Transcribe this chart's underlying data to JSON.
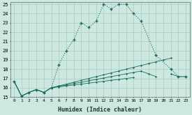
{
  "xlabel": "Humidex (Indice chaleur)",
  "bg_color": "#cce8e0",
  "grid_color": "#aaccbf",
  "line_color": "#1a6b5a",
  "xlim": [
    -0.5,
    23.5
  ],
  "ylim": [
    15,
    25.2
  ],
  "yticks": [
    15,
    16,
    17,
    18,
    19,
    20,
    21,
    22,
    23,
    24,
    25
  ],
  "xticks": [
    0,
    1,
    2,
    3,
    4,
    5,
    6,
    7,
    8,
    9,
    10,
    11,
    12,
    13,
    14,
    15,
    16,
    17,
    18,
    19,
    20,
    21,
    22,
    23
  ],
  "series": [
    {
      "x": [
        0,
        1,
        2,
        3,
        4,
        5,
        6,
        7,
        8,
        9,
        10,
        11,
        12,
        13,
        14,
        15,
        16,
        17,
        19,
        21,
        22,
        23
      ],
      "y": [
        16.7,
        15.1,
        15.5,
        15.8,
        15.5,
        16.0,
        18.5,
        20.0,
        21.2,
        23.0,
        22.5,
        23.2,
        25.0,
        24.5,
        25.0,
        25.0,
        24.0,
        23.2,
        19.5,
        18.0,
        17.2,
        17.2
      ]
    },
    {
      "x": [
        0,
        1,
        2,
        3,
        4,
        5,
        6,
        7,
        8,
        9,
        10,
        11,
        12,
        13,
        14,
        15,
        16,
        17,
        18,
        19,
        20,
        21,
        22,
        23
      ],
      "y": [
        16.7,
        15.1,
        15.5,
        15.8,
        15.5,
        16.0,
        16.2,
        16.4,
        16.6,
        16.8,
        17.0,
        17.2,
        17.4,
        17.6,
        17.8,
        18.0,
        18.2,
        18.4,
        18.6,
        18.8,
        19.0,
        19.2,
        null,
        null
      ]
    },
    {
      "x": [
        0,
        1,
        2,
        3,
        4,
        5,
        6,
        7,
        8,
        9,
        10,
        11,
        12,
        13,
        14,
        15,
        16,
        17,
        18,
        19,
        20,
        21,
        22,
        23
      ],
      "y": [
        16.7,
        15.1,
        15.5,
        15.8,
        15.5,
        16.0,
        16.15,
        16.3,
        16.45,
        16.6,
        16.75,
        16.9,
        17.05,
        17.2,
        17.35,
        17.5,
        17.65,
        17.8,
        17.5,
        17.2,
        null,
        17.5,
        17.2,
        17.2
      ]
    },
    {
      "x": [
        0,
        1,
        2,
        3,
        4,
        5,
        6,
        7,
        8,
        9,
        10,
        11,
        12,
        13,
        14,
        15,
        16
      ],
      "y": [
        16.7,
        15.1,
        15.5,
        15.8,
        15.5,
        16.0,
        16.1,
        16.2,
        16.3,
        16.4,
        16.5,
        16.6,
        16.7,
        16.8,
        16.9,
        17.0,
        17.1
      ]
    }
  ]
}
